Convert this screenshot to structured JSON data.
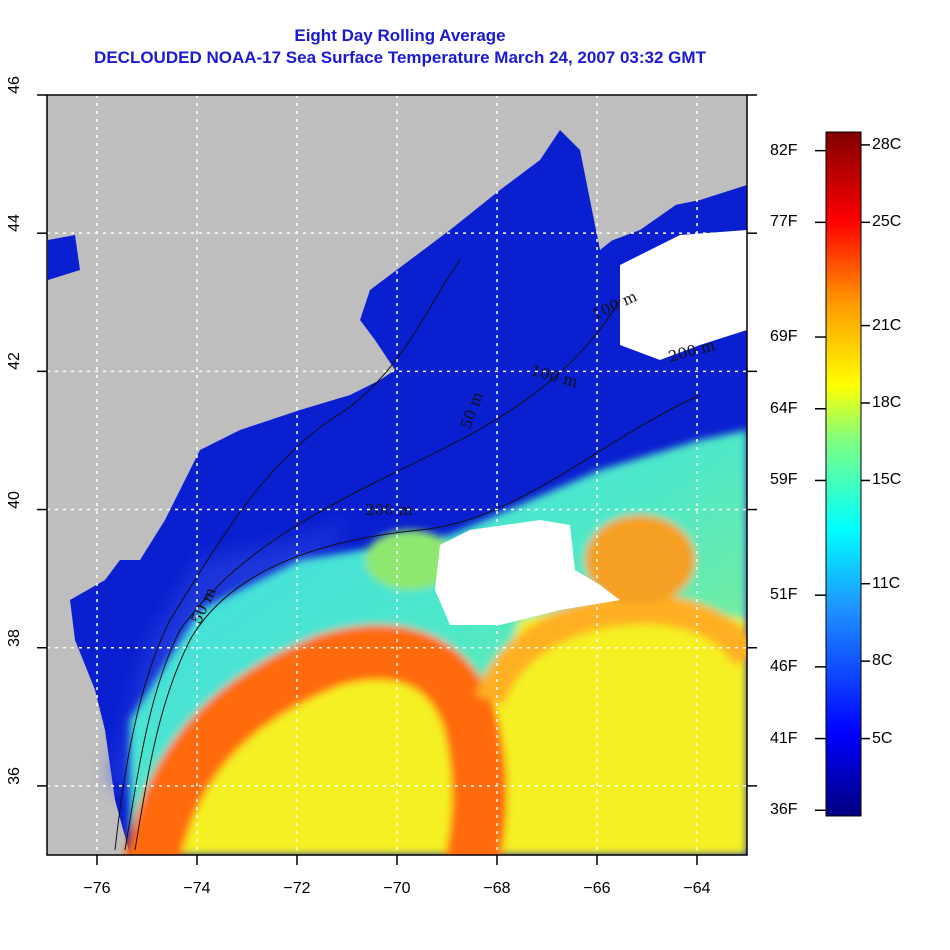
{
  "title": {
    "line1": "Eight Day Rolling Average",
    "line2": "DECLOUDED NOAA-17 Sea Surface Temperature March 24, 2007 03:32 GMT"
  },
  "map": {
    "lon_range": [
      -77,
      -63
    ],
    "lat_range": [
      35,
      46
    ],
    "x_ticks": [
      {
        "v": -76,
        "label": "−76"
      },
      {
        "v": -74,
        "label": "−74"
      },
      {
        "v": -72,
        "label": "−72"
      },
      {
        "v": -70,
        "label": "−70"
      },
      {
        "v": -68,
        "label": "−68"
      },
      {
        "v": -66,
        "label": "−66"
      },
      {
        "v": -64,
        "label": "−64"
      }
    ],
    "y_ticks": [
      {
        "v": 36,
        "label": "36"
      },
      {
        "v": 38,
        "label": "38"
      },
      {
        "v": 40,
        "label": "40"
      },
      {
        "v": 42,
        "label": "42"
      },
      {
        "v": 44,
        "label": "44"
      },
      {
        "v": 46,
        "label": "46"
      }
    ],
    "contour_labels": [
      "50 m",
      "100 m",
      "100 m",
      "200 m",
      "200 m",
      "50 m"
    ],
    "colors": {
      "land": "#bebebe",
      "cloud": "#ffffff",
      "cold": "#0a1fd0",
      "grid": "#ffffff"
    }
  },
  "colorbar": {
    "c_range": [
      2,
      28.5
    ],
    "c_ticks": [
      {
        "v": 28,
        "label": "28C"
      },
      {
        "v": 25,
        "label": "25C"
      },
      {
        "v": 21,
        "label": "21C"
      },
      {
        "v": 18,
        "label": "18C"
      },
      {
        "v": 15,
        "label": "15C"
      },
      {
        "v": 11,
        "label": "11C"
      },
      {
        "v": 8,
        "label": "8C"
      },
      {
        "v": 5,
        "label": "5C"
      }
    ],
    "f_ticks": [
      {
        "v": 82,
        "label": "82F"
      },
      {
        "v": 77,
        "label": "77F"
      },
      {
        "v": 69,
        "label": "69F"
      },
      {
        "v": 64,
        "label": "64F"
      },
      {
        "v": 59,
        "label": "59F"
      },
      {
        "v": 51,
        "label": "51F"
      },
      {
        "v": 46,
        "label": "46F"
      },
      {
        "v": 41,
        "label": "41F"
      },
      {
        "v": 36,
        "label": "36F"
      }
    ]
  }
}
